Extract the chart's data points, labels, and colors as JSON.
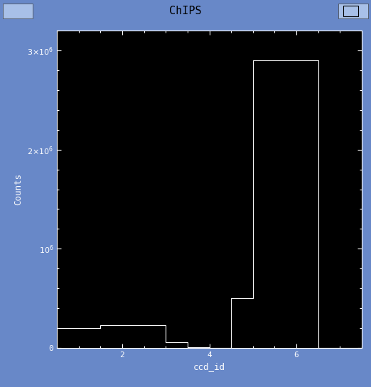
{
  "title": "ChIPS",
  "xlabel": "ccd_id",
  "ylabel": "Counts",
  "plot_bg_color": "#000000",
  "line_color": "#ffffff",
  "title_bar_color": "#a8c0e8",
  "title_text_color": "#000000",
  "fig_border_color": "#6888c8",
  "ylim": [
    0,
    3200000
  ],
  "xlim": [
    0.5,
    7.5
  ],
  "xticks": [
    2,
    4,
    6
  ],
  "bins": [
    0.5,
    1.5,
    2.0,
    2.5,
    3.0,
    3.5,
    4.0,
    4.5,
    5.0,
    5.5,
    6.0,
    6.5,
    7.5
  ],
  "counts": [
    200000,
    230000,
    230000,
    230000,
    60000,
    10000,
    0,
    500000,
    2900000,
    2900000,
    2900000,
    0
  ],
  "figsize": [
    5.22,
    5.45
  ],
  "dpi": 100
}
